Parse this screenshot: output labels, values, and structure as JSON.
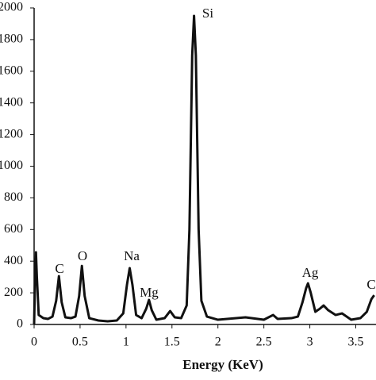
{
  "chart_data": {
    "type": "line",
    "x_label": "Energy (KeV)",
    "x": [
      0,
      0.01,
      0.02,
      0.03,
      0.05,
      0.1,
      0.15,
      0.2,
      0.24,
      0.27,
      0.3,
      0.34,
      0.4,
      0.45,
      0.49,
      0.52,
      0.55,
      0.6,
      0.7,
      0.8,
      0.9,
      0.97,
      1.01,
      1.04,
      1.07,
      1.11,
      1.17,
      1.22,
      1.25,
      1.28,
      1.33,
      1.42,
      1.48,
      1.53,
      1.6,
      1.66,
      1.69,
      1.72,
      1.74,
      1.76,
      1.79,
      1.82,
      1.88,
      2.0,
      2.2,
      2.3,
      2.5,
      2.6,
      2.65,
      2.8,
      2.87,
      2.92,
      2.96,
      2.98,
      3.01,
      3.06,
      3.11,
      3.15,
      3.2,
      3.28,
      3.35,
      3.45,
      3.55,
      3.62,
      3.67,
      3.7
    ],
    "series": [
      {
        "color": "#111111",
        "values": [
          0,
          300,
          456,
          300,
          60,
          40,
          35,
          50,
          150,
          305,
          140,
          45,
          40,
          50,
          180,
          370,
          180,
          40,
          25,
          20,
          25,
          70,
          250,
          356,
          250,
          60,
          40,
          100,
          155,
          90,
          30,
          40,
          85,
          45,
          40,
          120,
          600,
          1700,
          1950,
          1700,
          600,
          150,
          50,
          30,
          40,
          45,
          30,
          60,
          35,
          40,
          50,
          140,
          230,
          260,
          200,
          80,
          100,
          120,
          90,
          60,
          70,
          30,
          40,
          80,
          160,
          185
        ]
      }
    ],
    "annotations": [
      "C",
      "O",
      "Na",
      "Mg",
      "Si",
      "Ag",
      "C"
    ],
    "xlim": [
      0,
      3.72
    ],
    "ylim": [
      0,
      2000
    ],
    "xticks": [
      0,
      0.5,
      1,
      1.5,
      2,
      2.5,
      3,
      3.5
    ],
    "yticks": [
      0,
      200,
      400,
      600,
      800,
      1000,
      1200,
      1400,
      1600,
      1800,
      2000
    ]
  }
}
